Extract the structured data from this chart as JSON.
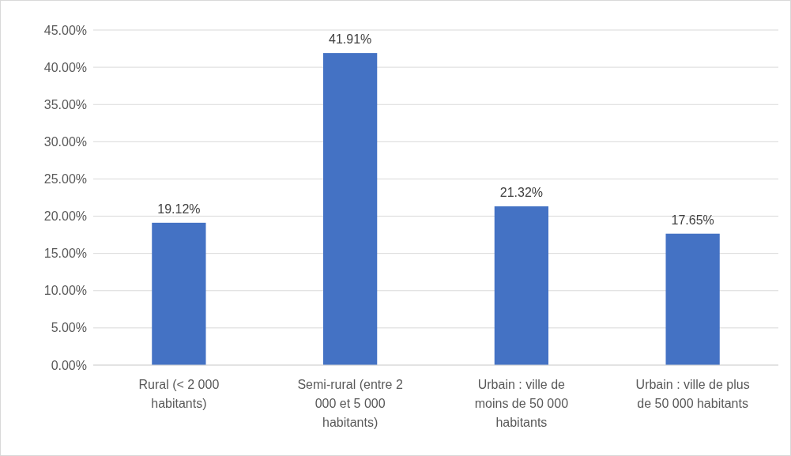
{
  "chart_data": {
    "type": "bar",
    "categories": [
      "Rural (< 2 000 habitants)",
      "Semi-rural (entre 2 000 et 5 000 habitants)",
      "Urbain : ville de moins de 50 000 habitants",
      "Urbain : ville de plus de 50 000 habitants"
    ],
    "values": [
      19.12,
      41.91,
      21.32,
      17.65
    ],
    "value_labels": [
      "19.12%",
      "41.91%",
      "21.32%",
      "17.65%"
    ],
    "color": "#4472c4",
    "ylim": [
      0,
      45
    ],
    "yticks": [
      {
        "value": 0,
        "label": "0.00%"
      },
      {
        "value": 5,
        "label": "5.00%"
      },
      {
        "value": 10,
        "label": "10.00%"
      },
      {
        "value": 15,
        "label": "15.00%"
      },
      {
        "value": 20,
        "label": "20.00%"
      },
      {
        "value": 25,
        "label": "25.00%"
      },
      {
        "value": 30,
        "label": "30.00%"
      },
      {
        "value": 35,
        "label": "35.00%"
      },
      {
        "value": 40,
        "label": "40.00%"
      },
      {
        "value": 45,
        "label": "45.00%"
      }
    ],
    "grid": "y"
  }
}
